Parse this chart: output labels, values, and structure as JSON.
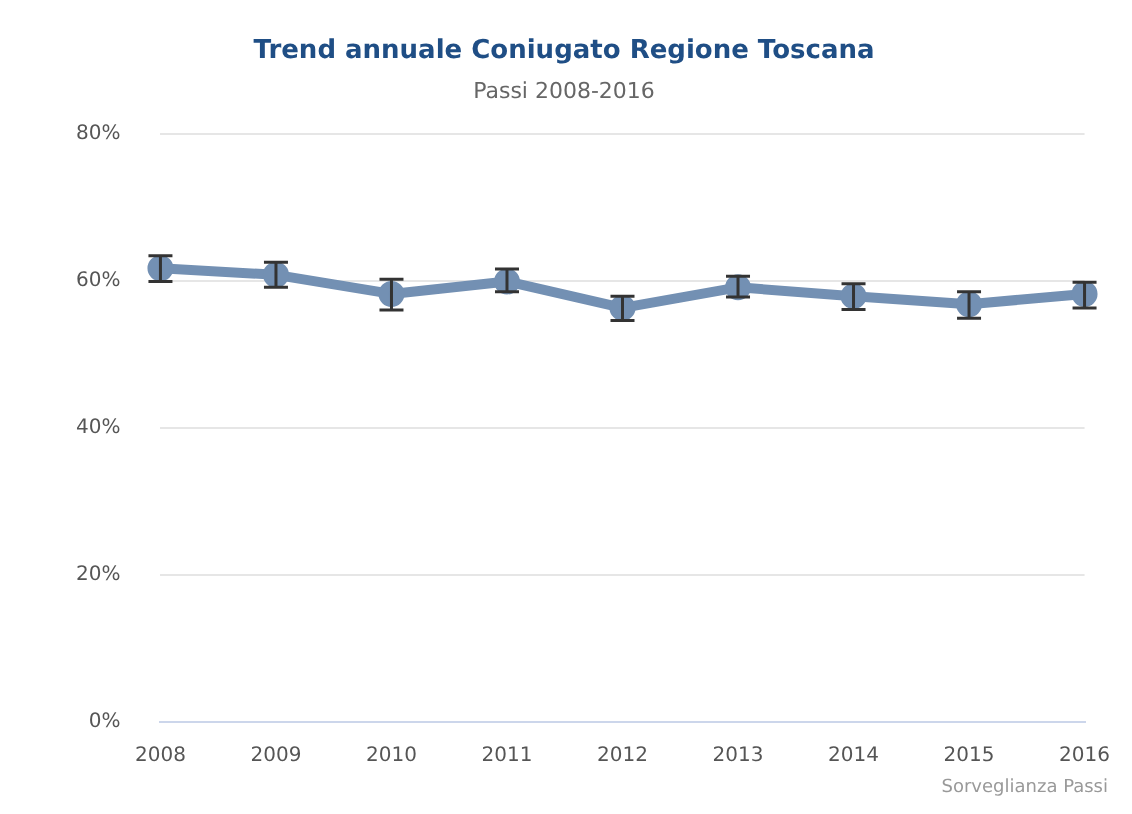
{
  "chart_data": {
    "type": "line",
    "title": "Trend annuale Coniugato Regione Toscana",
    "subtitle": "Passi 2008-2016",
    "categories": [
      "2008",
      "2009",
      "2010",
      "2011",
      "2012",
      "2013",
      "2014",
      "2015",
      "2016"
    ],
    "series": [
      {
        "color": "#7390b3",
        "values": [
          61.7,
          60.8,
          58.2,
          59.9,
          56.3,
          59.1,
          57.9,
          56.8,
          58.2
        ],
        "errors": [
          [
            59.9,
            63.4
          ],
          [
            59.1,
            62.5
          ],
          [
            56.0,
            60.2
          ],
          [
            58.5,
            61.6
          ],
          [
            54.6,
            57.9
          ],
          [
            57.8,
            60.6
          ],
          [
            56.1,
            59.6
          ],
          [
            54.9,
            58.5
          ],
          [
            56.3,
            59.8
          ]
        ]
      }
    ],
    "ylim": [
      0,
      80
    ],
    "yticks": [
      {
        "value": 0,
        "label": "0%"
      },
      {
        "value": 20,
        "label": "20%"
      },
      {
        "value": 40,
        "label": "40%"
      },
      {
        "value": 60,
        "label": "60%"
      },
      {
        "value": 80,
        "label": "80%"
      }
    ],
    "grid": "y",
    "legend": false,
    "marker": "circle",
    "line_style": "solid",
    "annotations": [
      "Sorveglianza Passi"
    ]
  }
}
